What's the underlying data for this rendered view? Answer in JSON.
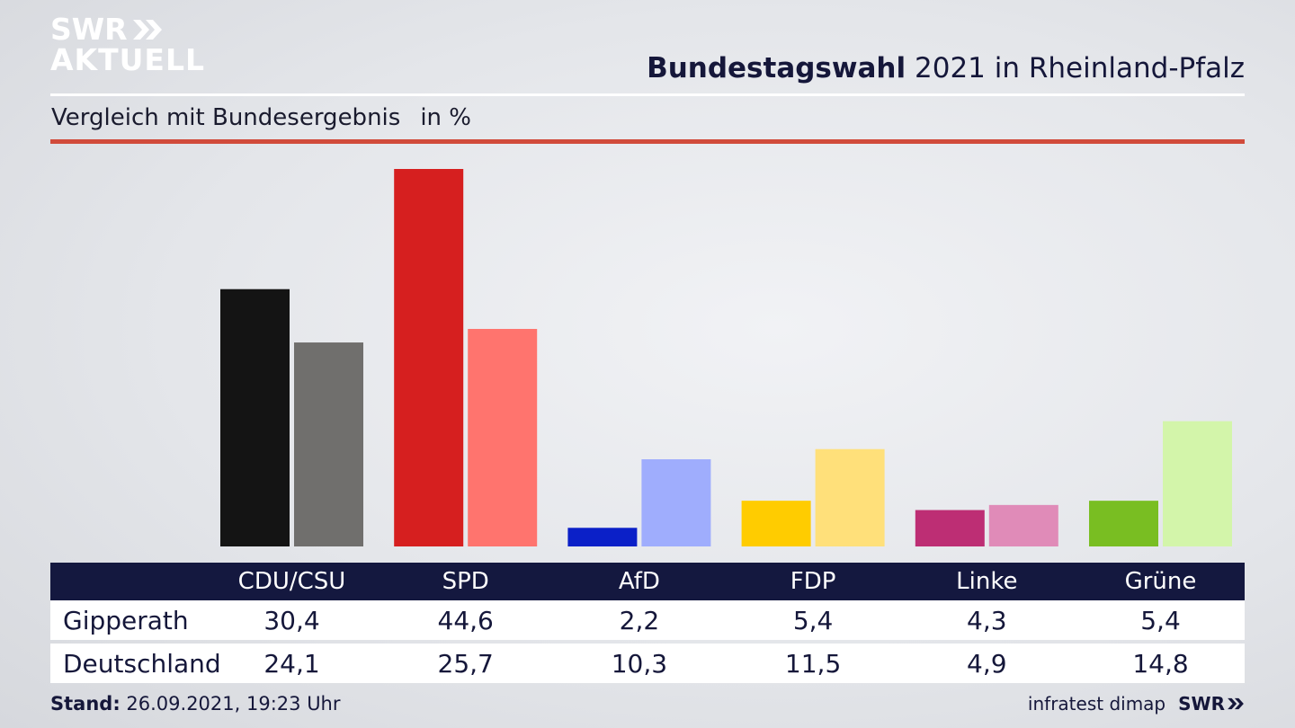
{
  "brand": {
    "logo_line1": "SWR",
    "logo_line2": "AKTUELL"
  },
  "header": {
    "title_bold": "Bundestagswahl",
    "title_rest": "2021 in Rheinland-Pfalz",
    "subtitle": "Vergleich mit Bundesergebnis",
    "unit": "in %"
  },
  "colors": {
    "header_bar": "#14183f",
    "rule_red": "#d14b3b",
    "parties": [
      {
        "primary": "#141414",
        "secondary": "#706f6d"
      },
      {
        "primary": "#d61f1f",
        "secondary": "#ff746e"
      },
      {
        "primary": "#0b20c8",
        "secondary": "#9fadfd"
      },
      {
        "primary": "#ffcc00",
        "secondary": "#ffe07a"
      },
      {
        "primary": "#bd2e74",
        "secondary": "#e08bb8"
      },
      {
        "primary": "#79be22",
        "secondary": "#d3f5aa"
      }
    ]
  },
  "chart_data": {
    "type": "bar",
    "categories": [
      "CDU/CSU",
      "SPD",
      "AfD",
      "FDP",
      "Linke",
      "Grüne"
    ],
    "series": [
      {
        "name": "Gipperath",
        "values": [
          30.4,
          44.6,
          2.2,
          5.4,
          4.3,
          5.4
        ]
      },
      {
        "name": "Deutschland",
        "values": [
          24.1,
          25.7,
          10.3,
          11.5,
          4.9,
          14.8
        ]
      }
    ],
    "ylim": [
      0,
      44.6
    ],
    "grid": false
  },
  "table": {
    "rows": [
      {
        "label": "Gipperath",
        "values": [
          "30,4",
          "44,6",
          "2,2",
          "5,4",
          "4,3",
          "5,4"
        ]
      },
      {
        "label": "Deutschland",
        "values": [
          "24,1",
          "25,7",
          "10,3",
          "11,5",
          "4,9",
          "14,8"
        ]
      }
    ]
  },
  "footer": {
    "stand_label": "Stand:",
    "stand_value": "26.09.2021, 19:23 Uhr",
    "source": "infratest dimap",
    "source_brand": "SWR"
  }
}
